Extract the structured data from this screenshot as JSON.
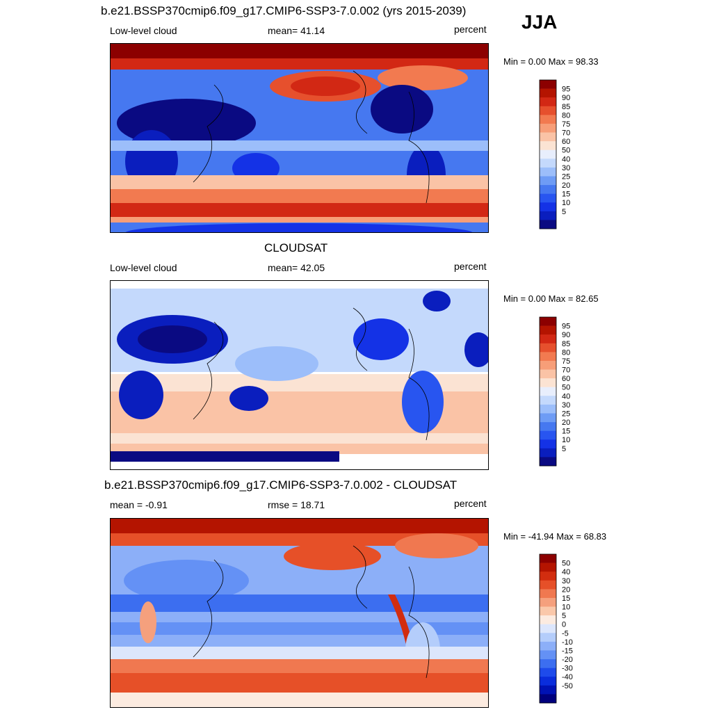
{
  "season": "JJA",
  "colors": {
    "cloud_scale": [
      "#0a0a82",
      "#0a1ebe",
      "#1432e6",
      "#2855f0",
      "#4678f0",
      "#6e9cf5",
      "#9cbefa",
      "#c4d9fc",
      "#e8eefc",
      "#fbe3d3",
      "#fac3a6",
      "#f79e78",
      "#f27a50",
      "#e6502d",
      "#d22814",
      "#b41400",
      "#8c0000"
    ],
    "diff_scale": [
      "#00007d",
      "#0012b4",
      "#0a2ddc",
      "#1e4beb",
      "#3c6ef0",
      "#6491f5",
      "#8caff8",
      "#b4cdfb",
      "#dce6fc",
      "#fcebe0",
      "#fac8aa",
      "#f5a07d",
      "#f07850",
      "#e65028",
      "#d22d0f",
      "#b41400",
      "#8c0000"
    ]
  },
  "chart_data": [
    {
      "type": "heatmap",
      "title": "b.e21.BSSP370cmip6.f09_g17.CMIP6-SSP3-7.0.002 (yrs 2015-2039)",
      "left_label": "Low-level cloud",
      "center_label": "mean=  41.14",
      "units": "percent",
      "stats": "Min =    0.00 Max =  98.33",
      "mean": 41.14,
      "min": 0.0,
      "max": 98.33,
      "levels": [
        "95",
        "90",
        "85",
        "80",
        "75",
        "70",
        "60",
        "50",
        "40",
        "30",
        "25",
        "20",
        "15",
        "10",
        "5"
      ]
    },
    {
      "type": "heatmap",
      "title": "CLOUDSAT",
      "left_label": "Low-level cloud",
      "center_label": "mean=  42.05",
      "units": "percent",
      "stats": "Min =    0.00 Max =  82.65",
      "mean": 42.05,
      "min": 0.0,
      "max": 82.65,
      "levels": [
        "95",
        "90",
        "85",
        "80",
        "75",
        "70",
        "60",
        "50",
        "40",
        "30",
        "25",
        "20",
        "15",
        "10",
        "5"
      ]
    },
    {
      "type": "heatmap",
      "title": "b.e21.BSSP370cmip6.f09_g17.CMIP6-SSP3-7.0.002 - CLOUDSAT",
      "left_label": "mean =  -0.91",
      "center_label": "rmse =  18.71",
      "units": "percent",
      "stats": "Min = -41.94 Max =  68.83",
      "mean": -0.91,
      "rmse": 18.71,
      "min": -41.94,
      "max": 68.83,
      "levels": [
        "50",
        "40",
        "30",
        "20",
        "15",
        "10",
        "5",
        "0",
        "-5",
        "-10",
        "-15",
        "-20",
        "-30",
        "-40",
        "-50"
      ]
    }
  ]
}
